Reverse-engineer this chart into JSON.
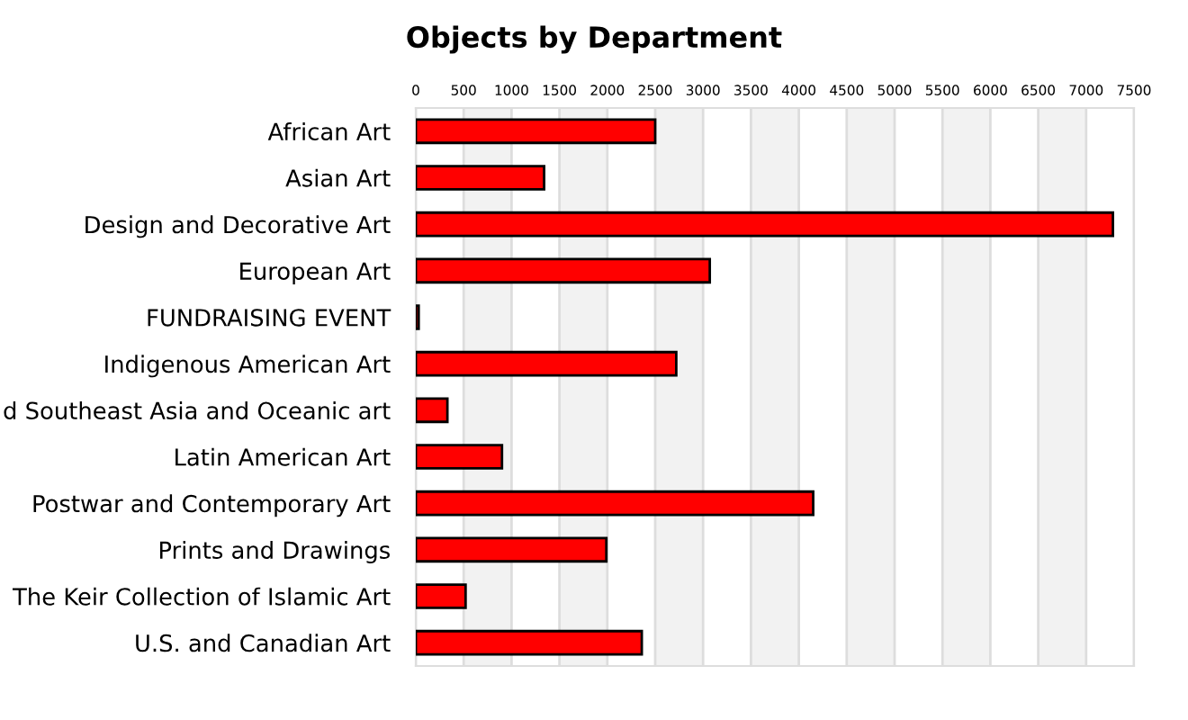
{
  "chart_data": {
    "type": "bar",
    "orientation": "horizontal",
    "title": "Objects by Department",
    "categories": [
      "African Art",
      "Asian Art",
      "Design and Decorative Art",
      "European Art",
      "FUNDRAISING EVENT",
      "Indigenous American Art",
      "d Southeast Asia and Oceanic art",
      "Latin American Art",
      "Postwar and Contemporary Art",
      "Prints and Drawings",
      "The Keir Collection of Islamic Art",
      "U.S. and Canadian Art"
    ],
    "values": [
      2500,
      1340,
      7280,
      3070,
      30,
      2720,
      330,
      900,
      4150,
      1990,
      520,
      2360
    ],
    "color": "#ff0000",
    "xlim": [
      0,
      7500
    ],
    "xticks": [
      0,
      500,
      1000,
      1500,
      2000,
      2500,
      3000,
      3500,
      4000,
      4500,
      5000,
      5500,
      6000,
      6500,
      7000,
      7500
    ],
    "grid": "x",
    "bands": [
      {
        "axis": "x",
        "from": 500,
        "to": 1000,
        "color": "#f2f2f2"
      },
      {
        "axis": "x",
        "from": 1500,
        "to": 2000,
        "color": "#f2f2f2"
      },
      {
        "axis": "x",
        "from": 2500,
        "to": 3000,
        "color": "#f2f2f2"
      },
      {
        "axis": "x",
        "from": 3500,
        "to": 4000,
        "color": "#f2f2f2"
      },
      {
        "axis": "x",
        "from": 4500,
        "to": 5000,
        "color": "#f2f2f2"
      },
      {
        "axis": "x",
        "from": 5500,
        "to": 6000,
        "color": "#f2f2f2"
      },
      {
        "axis": "x",
        "from": 6500,
        "to": 7000,
        "color": "#f2f2f2"
      }
    ]
  }
}
